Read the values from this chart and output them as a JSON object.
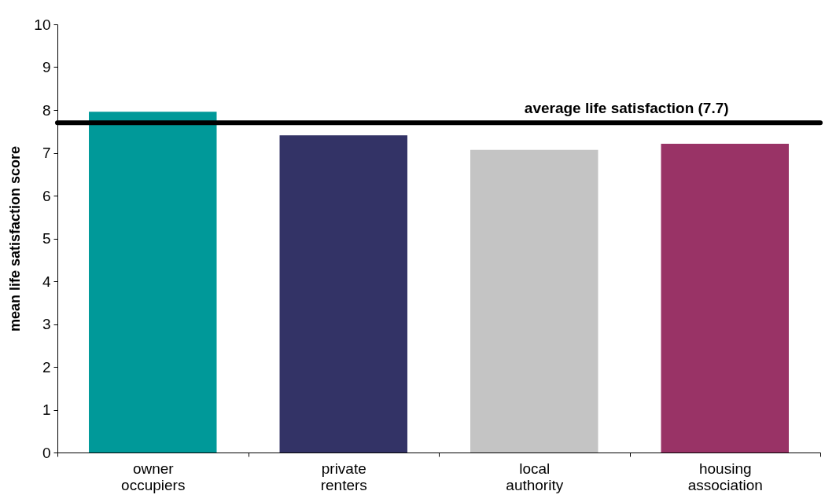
{
  "chart_data": {
    "type": "bar",
    "ylabel": "mean life satisfaction score",
    "categories": [
      "owner occupiers",
      "private renters",
      "local authority",
      "housing association"
    ],
    "values": [
      7.96,
      7.41,
      7.07,
      7.21
    ],
    "colors": [
      "#009999",
      "#333366",
      "#c4c4c4",
      "#993366"
    ],
    "ylim": [
      0,
      10
    ],
    "yticks": [
      0,
      1,
      2,
      3,
      4,
      5,
      6,
      7,
      8,
      9,
      10
    ],
    "grid": false,
    "legend": false,
    "ref_lines": [
      {
        "axis": "y",
        "value": 7.7,
        "label": "average life satisfaction (7.7)",
        "color": "#000000"
      }
    ]
  }
}
